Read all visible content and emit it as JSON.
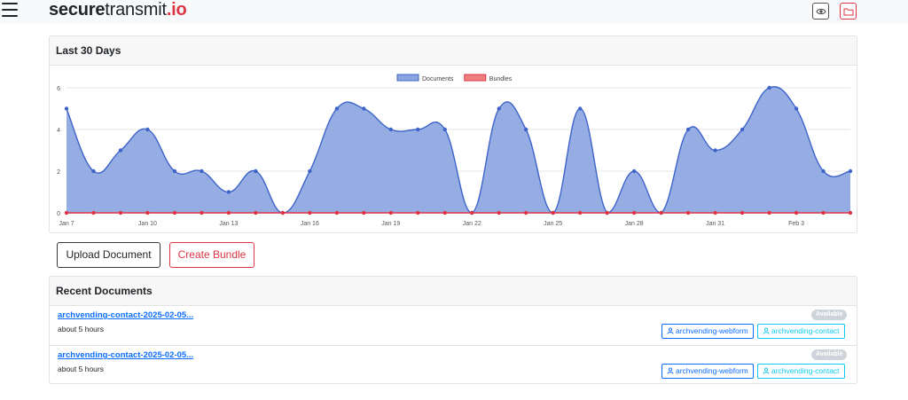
{
  "brand": {
    "part1": "secure",
    "part2": "transmit",
    "part3": ".io"
  },
  "header": {
    "view_icon": "eye-icon",
    "folder_icon": "folder-icon"
  },
  "chart_card": {
    "title": "Last 30 Days"
  },
  "chart_data": {
    "type": "area",
    "x": [
      "Jan 7",
      "Jan 8",
      "Jan 9",
      "Jan 10",
      "Jan 11",
      "Jan 12",
      "Jan 13",
      "Jan 14",
      "Jan 15",
      "Jan 16",
      "Jan 17",
      "Jan 18",
      "Jan 19",
      "Jan 20",
      "Jan 21",
      "Jan 22",
      "Jan 23",
      "Jan 24",
      "Jan 25",
      "Jan 26",
      "Jan 27",
      "Jan 28",
      "Jan 29",
      "Jan 30",
      "Jan 31",
      "Feb 1",
      "Feb 2",
      "Feb 3",
      "Feb 4",
      "Feb 5"
    ],
    "tick_labels": [
      "Jan 7",
      "Jan 10",
      "Jan 13",
      "Jan 16",
      "Jan 19",
      "Jan 22",
      "Jan 25",
      "Jan 28",
      "Jan 31",
      "Feb 3"
    ],
    "series": [
      {
        "name": "Documents",
        "color": "#3f64c9",
        "fill": "#8aa4e0",
        "values": [
          5,
          2,
          3,
          4,
          2,
          2,
          1,
          2,
          0,
          2,
          5,
          5,
          4,
          4,
          4,
          0,
          5,
          4,
          0,
          5,
          0,
          2,
          0,
          4,
          3,
          4,
          6,
          5,
          2,
          2
        ]
      },
      {
        "name": "Bundles",
        "color": "#dc3545",
        "fill": "#f08080",
        "values": [
          0,
          0,
          0,
          0,
          0,
          0,
          0,
          0,
          0,
          0,
          0,
          0,
          0,
          0,
          0,
          0,
          0,
          0,
          0,
          0,
          0,
          0,
          0,
          0,
          0,
          0,
          0,
          0,
          0,
          0
        ]
      }
    ],
    "ylim": [
      0,
      6
    ],
    "yticks": [
      0,
      2,
      4,
      6
    ],
    "grid": true,
    "legend": "top-center"
  },
  "actions": {
    "upload": "Upload Document",
    "bundle": "Create Bundle"
  },
  "recent": {
    "title": "Recent Documents",
    "items": [
      {
        "name": "archvending-contact-2025-02-05...",
        "time": "about 5 hours",
        "status": "Available",
        "tags": [
          "archvending-webform",
          "archvending-contact"
        ]
      },
      {
        "name": "archvending-contact-2025-02-05...",
        "time": "about 5 hours",
        "status": "Available",
        "tags": [
          "archvending-webform",
          "archvending-contact"
        ]
      }
    ]
  },
  "colors": {
    "accent_red": "#dc3545",
    "link_blue": "#0d6efd",
    "info_cyan": "#0dcaf0",
    "badge_gray": "#ced4da"
  }
}
